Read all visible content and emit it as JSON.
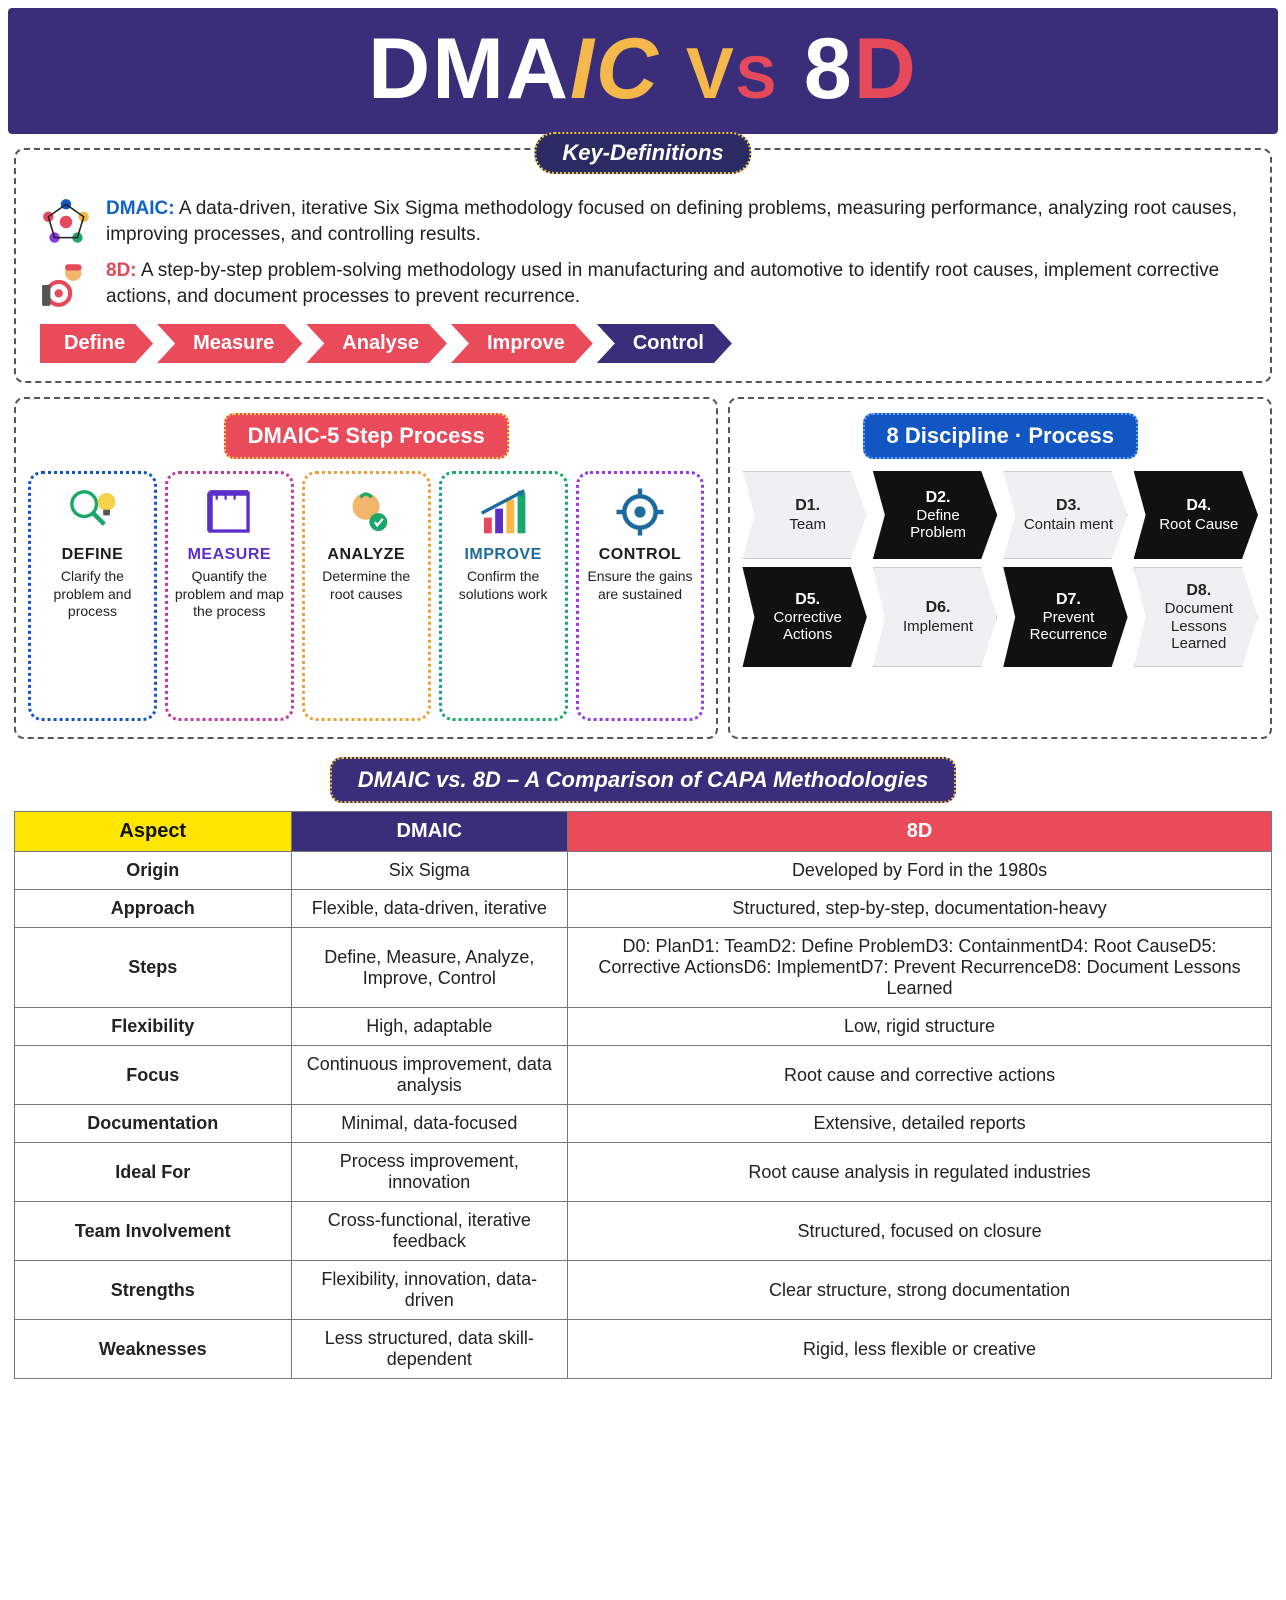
{
  "header": {
    "dma": "DMA",
    "ic": "IC",
    "vs_v": "V",
    "vs_s": "S",
    "eight": "8",
    "d": "D"
  },
  "keydef": {
    "badge": "Key-Definitions",
    "dmaic_label": "DMAIC:",
    "dmaic_text": " A data-driven, iterative Six Sigma methodology focused on defining problems, measuring performance, analyzing root causes, improving processes, and controlling results.",
    "d8_label": "8D:",
    "d8_text": " A step-by-step problem-solving methodology used in manufacturing and automotive to identify root causes, implement corrective actions, and document processes to prevent recurrence.",
    "chevrons": [
      "Define",
      "Measure",
      "Analyse",
      "Improve",
      "Control"
    ]
  },
  "panels": {
    "dmaic_title": "DMAIC-5 Step Process",
    "d8_title": "8 Discipline · Process",
    "dmaic_cards": [
      {
        "title": "DEFINE",
        "sub": "Clarify the problem and process"
      },
      {
        "title": "MEASURE",
        "sub": "Quantify the problem and map the process"
      },
      {
        "title": "ANALYZE",
        "sub": "Determine the root causes"
      },
      {
        "title": "IMPROVE",
        "sub": "Confirm the solutions work"
      },
      {
        "title": "CONTROL",
        "sub": "Ensure the gains are sustained"
      }
    ],
    "d8_steps": [
      {
        "t": "D1.",
        "s": "Team",
        "dark": false
      },
      {
        "t": "D2.",
        "s": "Define Problem",
        "dark": true
      },
      {
        "t": "D3.",
        "s": "Contain ment",
        "dark": false
      },
      {
        "t": "D4.",
        "s": "Root Cause",
        "dark": true
      },
      {
        "t": "D5.",
        "s": "Corrective Actions",
        "dark": true
      },
      {
        "t": "D6.",
        "s": "Implement",
        "dark": false
      },
      {
        "t": "D7.",
        "s": "Prevent Recurrence",
        "dark": true
      },
      {
        "t": "D8.",
        "s": "Document Lessons Learned",
        "dark": false
      }
    ]
  },
  "comparison": {
    "title": "DMAIC vs. 8D – A Comparison of CAPA Methodologies",
    "headers": {
      "aspect": "Aspect",
      "dmaic": "DMAIC",
      "d8": "8D"
    },
    "rows": [
      {
        "a": "Origin",
        "d": "Six Sigma",
        "e": "Developed by Ford in the 1980s"
      },
      {
        "a": "Approach",
        "d": "Flexible, data-driven, iterative",
        "e": "Structured, step-by-step, documentation-heavy"
      },
      {
        "a": "Steps",
        "d": "Define, Measure, Analyze, Improve, Control",
        "e": "D0: PlanD1: TeamD2: Define ProblemD3: ContainmentD4: Root CauseD5: Corrective ActionsD6: ImplementD7: Prevent RecurrenceD8: Document Lessons Learned"
      },
      {
        "a": "Flexibility",
        "d": "High, adaptable",
        "e": "Low, rigid structure"
      },
      {
        "a": "Focus",
        "d": "Continuous improvement, data analysis",
        "e": "Root cause and corrective actions"
      },
      {
        "a": "Documentation",
        "d": "Minimal, data-focused",
        "e": "Extensive, detailed reports"
      },
      {
        "a": "Ideal For",
        "d": "Process improvement, innovation",
        "e": "Root cause analysis in regulated industries"
      },
      {
        "a": "Team Involvement",
        "d": "Cross-functional, iterative feedback",
        "e": "Structured, focused on closure"
      },
      {
        "a": "Strengths",
        "d": "Flexibility, innovation, data-driven",
        "e": "Clear structure, strong documentation"
      },
      {
        "a": "Weaknesses",
        "d": "Less structured, data skill-dependent",
        "e": "Rigid, less flexible or creative"
      }
    ]
  },
  "colors": {
    "purple": "#3a2e7a",
    "red": "#ea4b5b",
    "blue": "#1156c2",
    "yellow": "#ffe600",
    "gold": "#f4b94a",
    "black": "#111"
  }
}
